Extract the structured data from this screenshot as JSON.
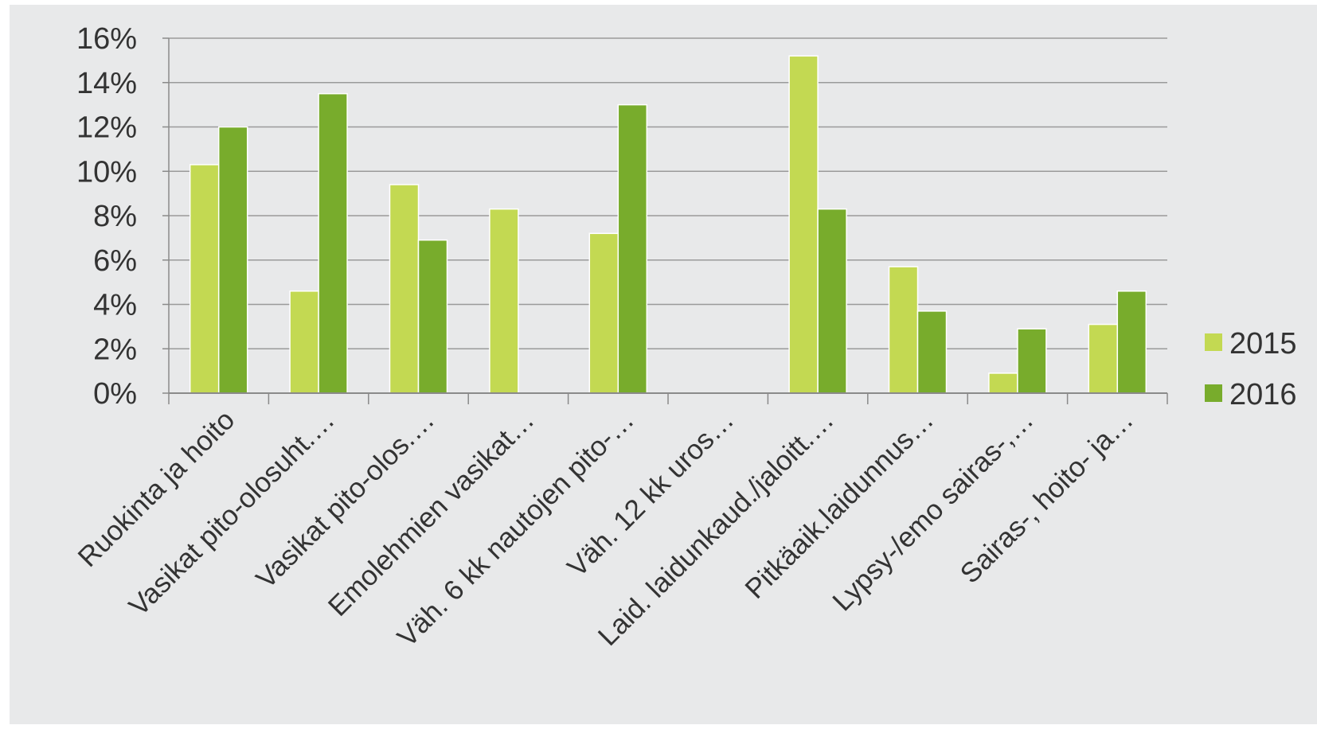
{
  "chart_data": {
    "type": "bar",
    "title": "",
    "xlabel": "",
    "ylabel": "",
    "ylim": [
      0,
      16
    ],
    "y_ticks": [
      "0%",
      "2%",
      "4%",
      "6%",
      "8%",
      "10%",
      "12%",
      "14%",
      "16%"
    ],
    "grid": true,
    "legend_position": "right",
    "categories": [
      "Ruokinta ja hoito",
      "Vasikat pito-olosuht.…",
      "Vasikat pito-olos.…",
      "Emolehmien vasikat…",
      "Väh. 6 kk nautojen pito-…",
      "Väh. 12 kk uros…",
      "Laid. laidunkaud./jaloitt.…",
      "Pitkäaik.laidunnus…",
      "Lypsy-/emo sairas-,…",
      "Sairas-, hoito- ja…"
    ],
    "series": [
      {
        "name": "2015",
        "color": "#c3d952",
        "values": [
          10.3,
          4.6,
          9.4,
          8.3,
          7.2,
          0,
          15.2,
          5.7,
          0.9,
          3.1
        ]
      },
      {
        "name": "2016",
        "color": "#78ac2c",
        "values": [
          12.0,
          13.5,
          6.9,
          0,
          13.0,
          0,
          8.3,
          3.7,
          2.9,
          4.6
        ]
      }
    ]
  }
}
